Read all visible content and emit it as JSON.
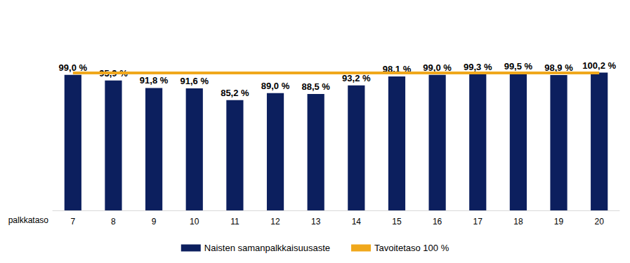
{
  "chart_data": {
    "type": "bar",
    "x_label": "palkkataso",
    "categories": [
      "7",
      "8",
      "9",
      "10",
      "11",
      "12",
      "13",
      "14",
      "15",
      "16",
      "17",
      "18",
      "19",
      "20"
    ],
    "series": [
      {
        "name": "Naisten samanpalkkaisuusaste",
        "type": "bar",
        "color": "#0c1f5e",
        "data_labels": true,
        "values": [
          99.0,
          95.9,
          91.8,
          91.6,
          85.2,
          89.0,
          88.5,
          93.2,
          98.1,
          99.0,
          99.3,
          99.5,
          98.9,
          100.2
        ],
        "value_labels": [
          "99,0 %",
          "95,9 %",
          "91,8 %",
          "91,6 %",
          "85,2 %",
          "89,0 %",
          "88,5 %",
          "93,2 %",
          "98,1 %",
          "99,0 %",
          "99,3 %",
          "99,5 %",
          "98,9 %",
          "100,2 %"
        ]
      },
      {
        "name": "Tavoitetaso 100 %",
        "type": "line",
        "color": "#f0a81c",
        "values": [
          100,
          100,
          100,
          100,
          100,
          100,
          100,
          100,
          100,
          100,
          100,
          100,
          100,
          100
        ]
      }
    ],
    "ylim": [
      25,
      105
    ],
    "yticks": [
      25,
      105
    ],
    "tick_labels": "x",
    "grid": false,
    "legend": "bottom"
  }
}
